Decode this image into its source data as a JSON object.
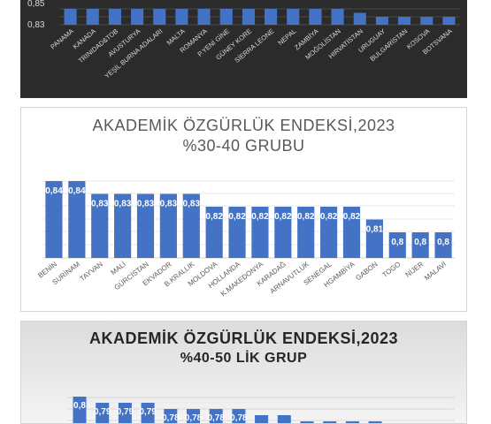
{
  "chart_data": [
    {
      "type": "bar",
      "title": "",
      "categories": [
        "PANAMA",
        "KANADA",
        "TRINIDAD&TOB",
        "AVUSTURYA",
        "YEŞİL BURNA ADALARI",
        "MALTA",
        "ROMANYA",
        "P.YENİ GİNE",
        "GÜNEY KORE",
        "SİERRA LEONE",
        "NEPAL",
        "ZAMBİYA",
        "MOĞOLİSTAN",
        "HIRVATİSTAN",
        "URUGUAY",
        "BULGARİSTAN",
        "KOSOVA",
        "BOTSVANA"
      ],
      "values": [
        0.87,
        0.87,
        0.87,
        0.87,
        0.87,
        0.87,
        0.87,
        0.87,
        0.87,
        0.87,
        0.87,
        0.87,
        0.87,
        0.86,
        0.85,
        0.85,
        0.85,
        0.85
      ],
      "yticks": [
        "0,85",
        "0,83"
      ],
      "ylim": [
        0.83,
        0.87
      ],
      "color": "#4472c4"
    },
    {
      "type": "bar",
      "title": "AKADEMİK ÖZGÜRLÜK ENDEKSİ,2023",
      "subtitle": "%30-40 GRUBU",
      "categories": [
        "BENİN",
        "SURİNAM",
        "TAYVAN",
        "MALİ",
        "GÜRCİSTAN",
        "EKVADOR",
        "B.KRALLIK",
        "MOLDOVA",
        "HOLLANDA",
        "K.MAKEDONYA",
        "KARADAĞ",
        "ARNAVUTLUK",
        "SENEGAL",
        "HGAMBİYA",
        "GABON",
        "TOGO",
        "NİJER",
        "MALAVİ"
      ],
      "values": [
        0.84,
        0.84,
        0.83,
        0.83,
        0.83,
        0.83,
        0.83,
        0.82,
        0.82,
        0.82,
        0.82,
        0.82,
        0.82,
        0.82,
        0.81,
        0.8,
        0.8,
        0.8
      ],
      "data_labels": [
        "0,84",
        "0,84",
        "0,83",
        "0,83",
        "0,83",
        "0,83",
        "0,83",
        "0,82",
        "0,82",
        "0,82",
        "0,82",
        "0,82",
        "0,82",
        "0,82",
        "0,81",
        "0,8",
        "0,8",
        "0,8"
      ],
      "color": "#4472c4"
    },
    {
      "type": "bar",
      "title": "AKADEMİK ÖZGÜRLÜK ENDEKSİ,2023",
      "subtitle": "%40-50 LİK GRUP",
      "values": [
        0.8,
        0.79,
        0.79,
        0.79,
        0.78,
        0.78,
        0.78,
        0.78,
        0.77,
        0.77,
        0.76,
        0.76,
        0.76,
        0.76
      ],
      "data_labels": [
        "0,8",
        "0,79",
        "0,79",
        "0,79",
        "0,78",
        "0,78",
        "0,78",
        "0,78",
        "",
        "",
        "",
        "",
        "",
        ""
      ],
      "color": "#4472c4"
    }
  ]
}
